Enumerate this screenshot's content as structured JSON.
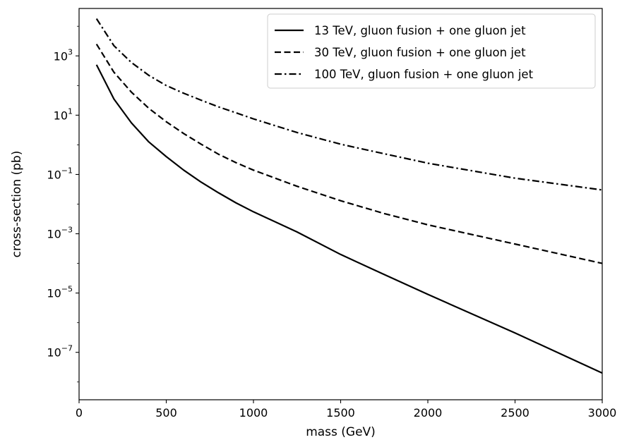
{
  "chart_data": {
    "type": "line",
    "title": "",
    "xlabel": "mass (GeV)",
    "ylabel": "cross-section (pb)",
    "xlim": [
      0,
      3000
    ],
    "ylim_log10": [
      -8.6,
      4.6
    ],
    "yscale": "log",
    "grid": false,
    "legend_position": "top-right",
    "x_ticks": [
      0,
      500,
      1000,
      1500,
      2000,
      2500,
      3000
    ],
    "x_tick_labels": [
      "0",
      "500",
      "1000",
      "1500",
      "2000",
      "2500",
      "3000"
    ],
    "y_ticks_log10": [
      -7,
      -5,
      -3,
      -1,
      1,
      3
    ],
    "y_tick_labels": [
      {
        "base": "10",
        "exp": "−7"
      },
      {
        "base": "10",
        "exp": "−5"
      },
      {
        "base": "10",
        "exp": "−3"
      },
      {
        "base": "10",
        "exp": "−1"
      },
      {
        "base": "10",
        "exp": "1"
      },
      {
        "base": "10",
        "exp": "3"
      }
    ],
    "series": [
      {
        "name": "13 TeV, gluon fusion + one gluon jet",
        "dash": "solid",
        "color": "#000000",
        "x": [
          100,
          200,
          300,
          400,
          500,
          600,
          700,
          800,
          900,
          1000,
          1250,
          1500,
          1750,
          2000,
          2500,
          3000
        ],
        "y": [
          500,
          35,
          5.5,
          1.25,
          0.4,
          0.14,
          0.055,
          0.024,
          0.011,
          0.0055,
          0.00115,
          0.0002,
          4.2e-05,
          9e-06,
          4.5e-07,
          2e-08
        ]
      },
      {
        "name": "30 TeV, gluon fusion + one gluon jet",
        "dash": "dashed",
        "color": "#000000",
        "x": [
          100,
          200,
          300,
          400,
          500,
          600,
          700,
          800,
          900,
          1000,
          1250,
          1500,
          1750,
          2000,
          2500,
          3000
        ],
        "y": [
          2500,
          280,
          60,
          17,
          6,
          2.4,
          1.05,
          0.48,
          0.25,
          0.14,
          0.04,
          0.013,
          0.0048,
          0.002,
          0.00045,
          0.0001
        ]
      },
      {
        "name": "100 TeV, gluon fusion + one gluon jet",
        "dash": "dashdot",
        "color": "#000000",
        "x": [
          100,
          200,
          300,
          400,
          500,
          600,
          700,
          800,
          900,
          1000,
          1250,
          1500,
          1750,
          2000,
          2500,
          3000
        ],
        "y": [
          18000,
          2200,
          600,
          220,
          100,
          55,
          32,
          19,
          12,
          7.5,
          2.6,
          1.05,
          0.5,
          0.24,
          0.075,
          0.03
        ]
      }
    ]
  }
}
